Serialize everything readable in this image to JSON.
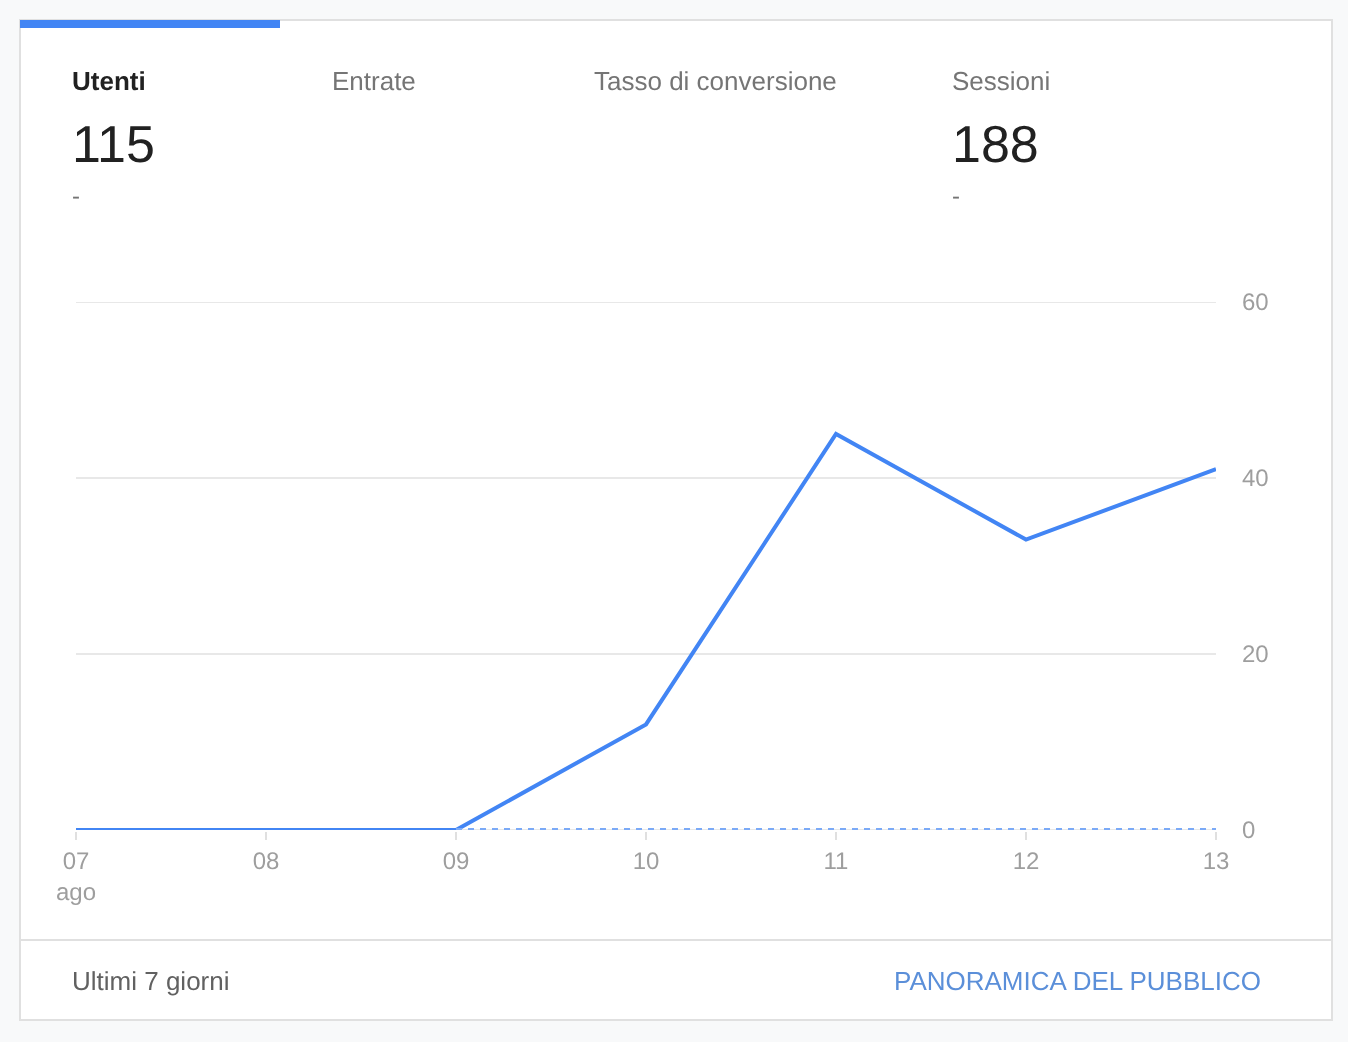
{
  "chart_data": {
    "type": "line",
    "categories": [
      "07\nago",
      "08",
      "09",
      "10",
      "11",
      "12",
      "13"
    ],
    "series": [
      {
        "color": "#4285f4",
        "values": [
          0,
          0,
          0,
          12,
          45,
          33,
          41
        ],
        "line_style": "solid"
      },
      {
        "color": "#7baaf7",
        "values": [
          null,
          null,
          0,
          0,
          0,
          0,
          0
        ],
        "line_style": "dotted"
      }
    ],
    "ylim": [
      0,
      60
    ],
    "yticks": [
      0,
      20,
      40,
      60
    ],
    "grid": "y",
    "marker": "none",
    "annotations": [
      "Utenti",
      "115",
      "-",
      "Entrate",
      "Tasso di conversione",
      "Sessioni",
      "188",
      "-",
      "Ultimi 7 giorni",
      "PANORAMICA DEL PUBBLICO"
    ]
  }
}
